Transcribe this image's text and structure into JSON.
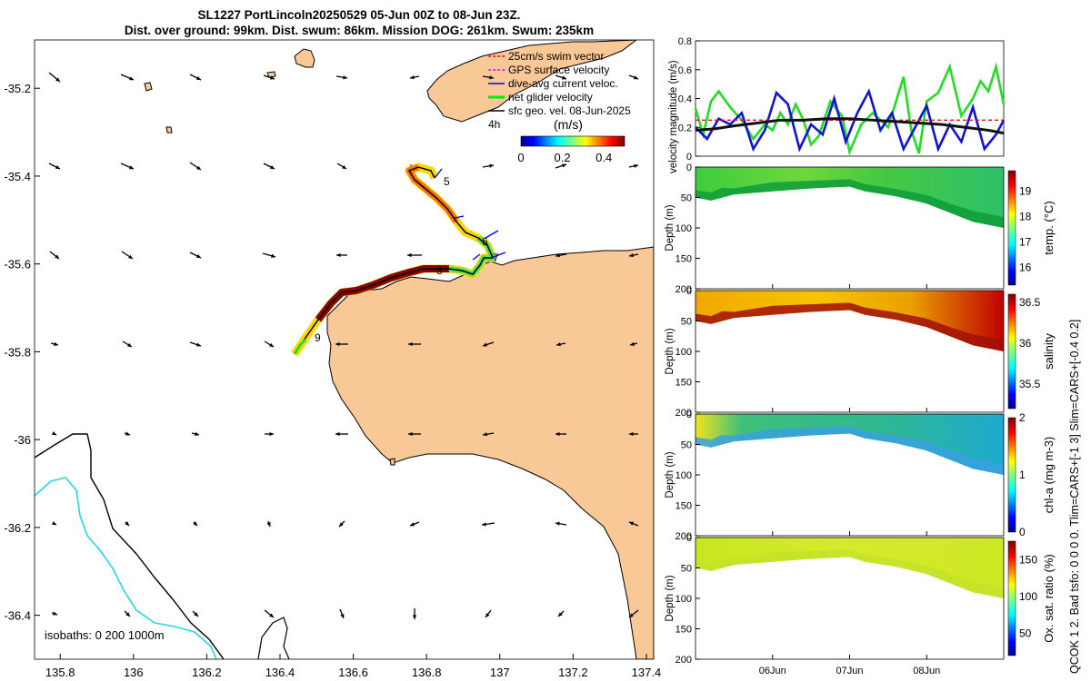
{
  "title": {
    "line1": "SL1227 PortLincoln20250529 05-Jun 00Z to 08-Jun 23Z.",
    "line2": "Dist. over ground: 99km. Dist. swum: 86km. Mission DOG: 261km. Swum: 235km"
  },
  "map": {
    "x_ticks": [
      "135.8",
      "136",
      "136.2",
      "136.4",
      "136.6",
      "136.8",
      "137",
      "137.2",
      "137.4"
    ],
    "y_ticks": [
      "-35.2",
      "-35.4",
      "-35.6",
      "-35.8",
      "-36",
      "-36.2",
      "-36.4"
    ],
    "xlim": [
      135.73,
      137.42
    ],
    "ylim": [
      -36.5,
      -35.09
    ],
    "legend": [
      {
        "label": "25cm/s swim vector",
        "color": "#ff0000"
      },
      {
        "label": "GPS surface velocity",
        "color": "#ff00ff"
      },
      {
        "label": "dive-avg current veloc.",
        "color": "#0000ff"
      },
      {
        "label": "net glider velocity",
        "color": "#00ee00"
      },
      {
        "label": "sfc geo. vel. 08-Jun-2025",
        "color": "#000000"
      }
    ],
    "legend_note": "4h",
    "colorbar": {
      "label": "(m/s)",
      "ticks": [
        "0",
        "0.2",
        "0.4"
      ],
      "range": [
        0,
        0.5
      ]
    },
    "track_labels": [
      "5",
      "6",
      "7",
      "8",
      "9"
    ],
    "isobath_label": "isobaths: 0   200  1000m",
    "land_color": "#f8c896"
  },
  "velocity_chart": {
    "ylabel": "velocity magnitude (m/s)",
    "y_ticks": [
      "0",
      "0.2",
      "0.4",
      "0.6",
      "0.8"
    ],
    "ylim": [
      0,
      0.8
    ],
    "xlim_days": [
      0,
      4
    ],
    "series": [
      {
        "name": "net glider velocity",
        "color": "#22dd22",
        "x": [
          0,
          0.1,
          0.2,
          0.3,
          0.45,
          0.6,
          0.75,
          0.9,
          1.0,
          1.1,
          1.2,
          1.3,
          1.4,
          1.5,
          1.6,
          1.75,
          1.9,
          2.0,
          2.15,
          2.3,
          2.5,
          2.7,
          2.8,
          2.9,
          3.0,
          3.15,
          3.3,
          3.45,
          3.6,
          3.7,
          3.8,
          3.9,
          4.0
        ],
        "y": [
          0.33,
          0.15,
          0.38,
          0.45,
          0.34,
          0.25,
          0.12,
          0.22,
          0.18,
          0.3,
          0.22,
          0.36,
          0.25,
          0.08,
          0.14,
          0.38,
          0.28,
          0.03,
          0.22,
          0.3,
          0.2,
          0.55,
          0.18,
          0.02,
          0.38,
          0.44,
          0.62,
          0.28,
          0.4,
          0.52,
          0.45,
          0.62,
          0.36
        ]
      },
      {
        "name": "dive-avg current veloc.",
        "color": "#1111dd",
        "x": [
          0,
          0.15,
          0.3,
          0.45,
          0.6,
          0.75,
          0.9,
          1.05,
          1.2,
          1.35,
          1.5,
          1.65,
          1.8,
          1.95,
          2.1,
          2.25,
          2.4,
          2.55,
          2.7,
          2.85,
          3.0,
          3.15,
          3.3,
          3.45,
          3.6,
          3.75,
          3.9,
          4.0
        ],
        "y": [
          0.2,
          0.12,
          0.26,
          0.22,
          0.3,
          0.05,
          0.18,
          0.44,
          0.36,
          0.05,
          0.22,
          0.15,
          0.4,
          0.1,
          0.3,
          0.45,
          0.18,
          0.3,
          0.05,
          0.2,
          0.35,
          0.05,
          0.22,
          0.1,
          0.34,
          0.05,
          0.15,
          0.25
        ]
      },
      {
        "name": "25cm/s swim vector",
        "color": "#ee1111",
        "x": [
          0,
          4
        ],
        "y": [
          0.25,
          0.25
        ]
      },
      {
        "name": "GPS surface velocity",
        "color": "#111111",
        "x": [
          0,
          0.25,
          0.5,
          0.8,
          1.1,
          1.4,
          1.7,
          2.0,
          2.3,
          2.6,
          2.9,
          3.2,
          3.5,
          3.8,
          4.0
        ],
        "y": [
          0.18,
          0.19,
          0.21,
          0.23,
          0.25,
          0.25,
          0.26,
          0.26,
          0.25,
          0.24,
          0.23,
          0.22,
          0.2,
          0.18,
          0.16
        ]
      }
    ]
  },
  "sections": {
    "depth_label": "Depth (m)",
    "depth_ticks": [
      "0",
      "50",
      "100",
      "150",
      "200"
    ],
    "x_ticks": [
      "06Jun",
      "07Jun",
      "08Jun"
    ],
    "x_tick_days": [
      1,
      2,
      3
    ],
    "panels": [
      {
        "name": "temperature",
        "cbar_label": "temp. (°C)",
        "cbar_ticks": [
          "16",
          "17",
          "18",
          "19"
        ],
        "cbar_range": [
          15.3,
          19.8
        ]
      },
      {
        "name": "salinity",
        "cbar_label": "salinity",
        "cbar_ticks": [
          "35.5",
          "36",
          "36.5"
        ],
        "cbar_range": [
          35.2,
          36.6
        ]
      },
      {
        "name": "chlorophyll",
        "cbar_label": "chl-a (mg m-3)",
        "cbar_ticks": [
          "0",
          "1",
          "2"
        ],
        "cbar_range": [
          0,
          2
        ]
      },
      {
        "name": "oxygen",
        "cbar_label": "Ox. sat. ratio (%)",
        "cbar_ticks": [
          "50",
          "100",
          "150"
        ],
        "cbar_range": [
          20,
          175
        ]
      }
    ],
    "side_note_1": "salinity",
    "side_note_2": "QCOK 1  2. Bad tsfo: 0  0  0  0. Tlim=CARS+[-1 3] Slim=CARS+[-0.4 0.2]"
  }
}
